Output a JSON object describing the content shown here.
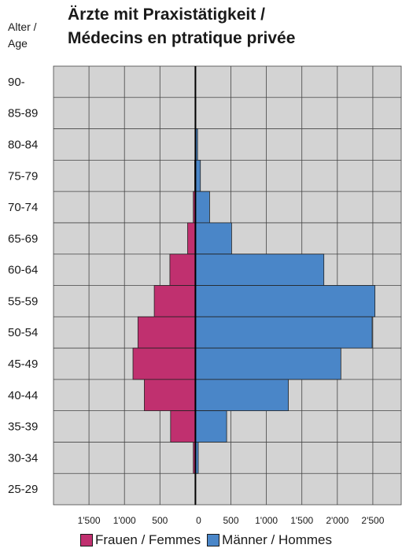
{
  "title_line1": "Ärzte mit Praxistätigkeit /",
  "title_line2": "Médecins en ptratique privée",
  "age_label_line1": "Alter /",
  "age_label_line2": "Age",
  "colors": {
    "women": "#c0306f",
    "men": "#4a86c8",
    "grid_bg": "#d3d3d3",
    "grid_line": "#444444"
  },
  "chart_data": {
    "type": "bar",
    "orientation": "horizontal-pyramid",
    "categories": [
      "90-",
      "85-89",
      "80-84",
      "75-79",
      "70-74",
      "65-69",
      "60-64",
      "55-59",
      "50-54",
      "45-49",
      "40-44",
      "35-39",
      "30-34",
      "25-29"
    ],
    "series": [
      {
        "name": "Frauen / Femmes",
        "side": "left",
        "values": [
          0,
          0,
          5,
          10,
          30,
          110,
          360,
          580,
          810,
          880,
          720,
          350,
          30,
          5
        ]
      },
      {
        "name": "Männer / Hommes",
        "side": "right",
        "values": [
          0,
          5,
          30,
          70,
          200,
          510,
          1810,
          2530,
          2490,
          2050,
          1310,
          440,
          40,
          0
        ]
      }
    ],
    "x_ticks": [
      "1'500",
      "1'000",
      "500",
      "0",
      "500",
      "1'000",
      "1'500",
      "2'000",
      "2'500"
    ],
    "xlim": [
      -2000,
      2900
    ],
    "grid": true,
    "legend_position": "bottom"
  }
}
